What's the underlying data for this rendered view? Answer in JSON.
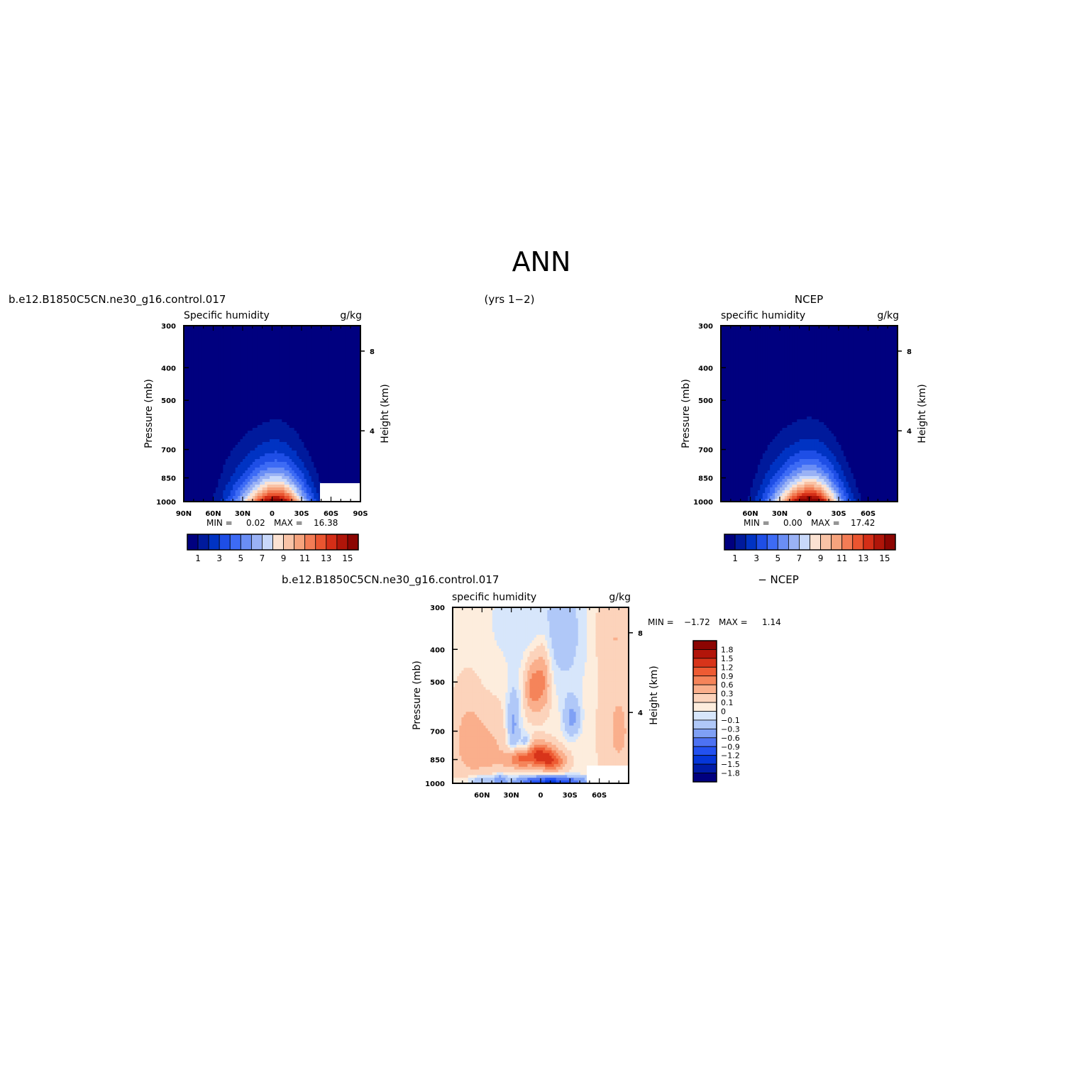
{
  "figure": {
    "title": "ANN",
    "period": "(yrs 1−2)",
    "case_name": "b.e12.B1850C5CN.ne30_g16.control.017",
    "obs_name": "NCEP",
    "diff_case_name": "b.e12.B1850C5CN.ne30_g16.control.017",
    "diff_obs_label": "− NCEP"
  },
  "colors": {
    "main_scale": [
      "#00007f",
      "#001a9c",
      "#0033c3",
      "#1e4ee6",
      "#3d6bf5",
      "#6a8ef5",
      "#9ab2f5",
      "#c8d8fa",
      "#fbe2d2",
      "#f9c3a6",
      "#f6a37d",
      "#f37c55",
      "#ea5530",
      "#d42e17",
      "#b01509",
      "#8c0502"
    ],
    "diff_scale": [
      "#00007f",
      "#001ca8",
      "#0536d9",
      "#2351f0",
      "#4d72f2",
      "#7fa0f5",
      "#b0c8f8",
      "#d7e6fb",
      "#fdeddd",
      "#fcd3bb",
      "#faaf8c",
      "#f5845a",
      "#ee5b33",
      "#d8341a",
      "#b2150a",
      "#8c0502"
    ]
  },
  "chart_data": [
    {
      "type": "heatmap",
      "panel": "model",
      "title": "Specific humidity",
      "units": "g/kg",
      "ylabel": "Pressure (mb)",
      "ylabel_right": "Height (km)",
      "y_ticks": [
        "300",
        "400",
        "500",
        "700",
        "850",
        "1000"
      ],
      "y_ticks_right": [
        "8",
        "4"
      ],
      "x_ticks": [
        "90N",
        "60N",
        "30N",
        "0",
        "30S",
        "60S",
        "90S"
      ],
      "stats": {
        "min_label": "MIN =",
        "min": "0.02",
        "max_label": "MAX =",
        "max": "16.38"
      },
      "colorbar_labels": [
        "1",
        "3",
        "5",
        "7",
        "9",
        "11",
        "13",
        "15"
      ],
      "peak": 16.38
    },
    {
      "type": "heatmap",
      "panel": "obs",
      "title": "specific humidity",
      "units": "g/kg",
      "ylabel": "Pressure (mb)",
      "ylabel_right": "Height (km)",
      "y_ticks": [
        "300",
        "400",
        "500",
        "700",
        "850",
        "1000"
      ],
      "y_ticks_right": [
        "8",
        "4"
      ],
      "x_ticks": [
        "60N",
        "30N",
        "0",
        "30S",
        "60S"
      ],
      "stats": {
        "min_label": "MIN =",
        "min": "0.00",
        "max_label": "MAX =",
        "max": "17.42"
      },
      "colorbar_labels": [
        "1",
        "3",
        "5",
        "7",
        "9",
        "11",
        "13",
        "15"
      ],
      "peak": 17.42
    },
    {
      "type": "heatmap",
      "panel": "difference",
      "title": "specific humidity",
      "units": "g/kg",
      "ylabel": "Pressure (mb)",
      "ylabel_right": "Height (km)",
      "y_ticks": [
        "300",
        "400",
        "500",
        "700",
        "850",
        "1000"
      ],
      "y_ticks_right": [
        "8",
        "4"
      ],
      "x_ticks": [
        "60N",
        "30N",
        "0",
        "30S",
        "60S"
      ],
      "stats": {
        "min_label": "MIN =",
        "min": "−1.72",
        "max_label": "MAX =",
        "max": "1.14"
      },
      "colorbar_labels": [
        "1.8",
        "1.5",
        "1.2",
        "0.9",
        "0.6",
        "0.3",
        "0.1",
        "0",
        "−0.1",
        "−0.3",
        "−0.6",
        "−0.9",
        "−1.2",
        "−1.5",
        "−1.8"
      ]
    }
  ]
}
